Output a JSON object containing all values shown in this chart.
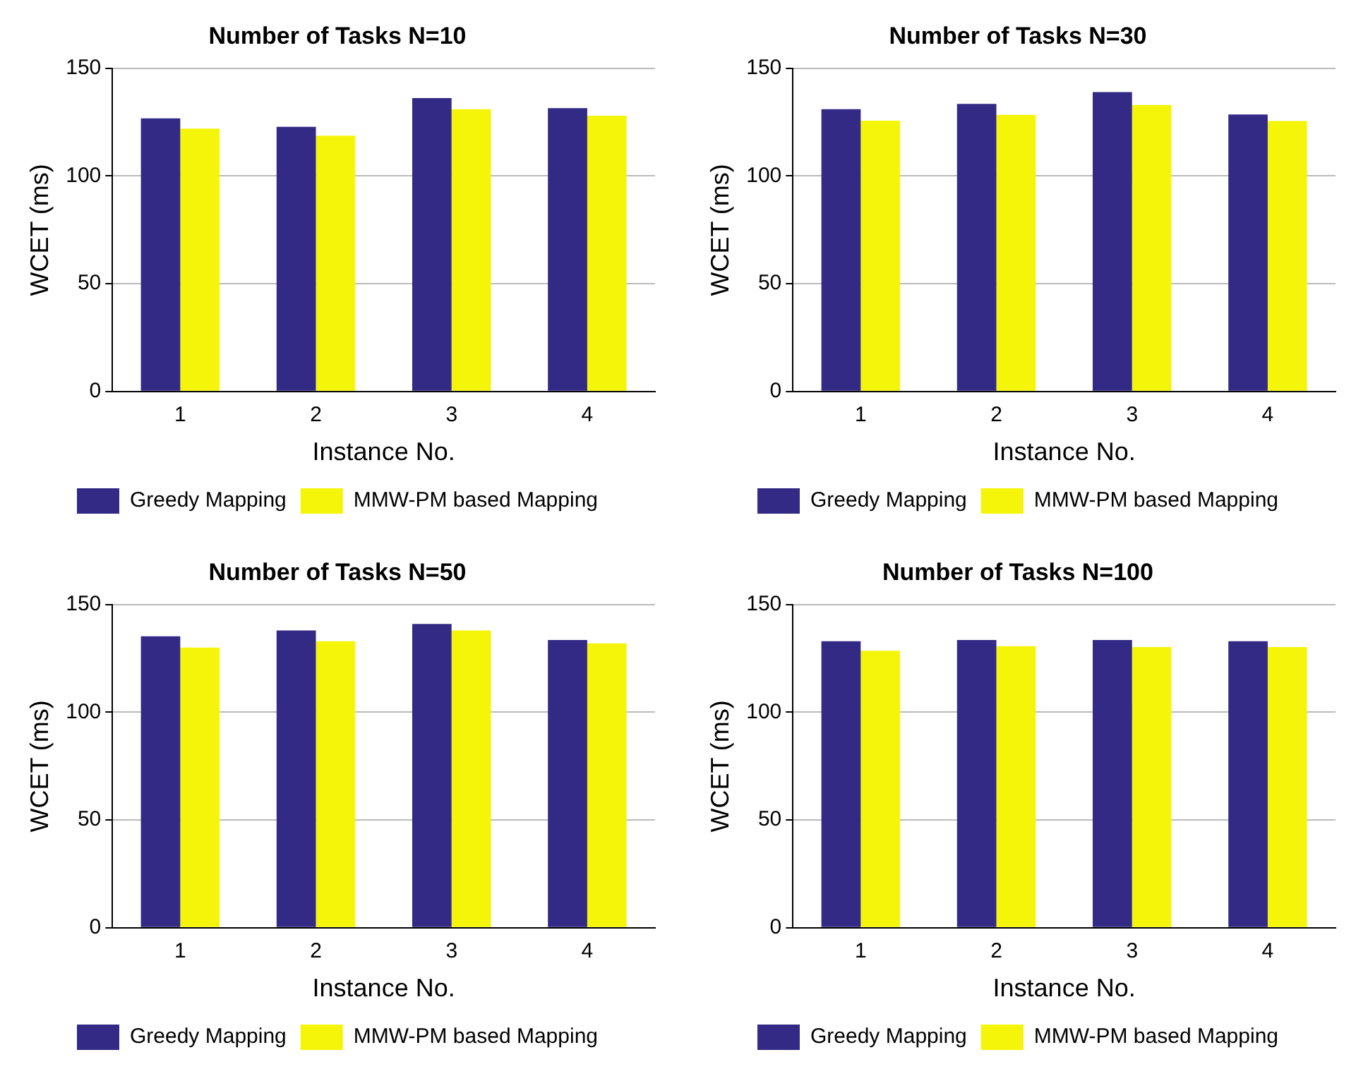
{
  "chart_data": [
    {
      "type": "bar",
      "title": "Number of Tasks N=10",
      "xlabel": "Instance No.",
      "ylabel": "WCET (ms)",
      "categories": [
        "1",
        "2",
        "3",
        "4"
      ],
      "series": [
        {
          "name": "Greedy Mapping",
          "color": "#332a85",
          "values": [
            126.8,
            122.8,
            136.2,
            131.5
          ]
        },
        {
          "name": "MMW-PM based Mapping",
          "color": "#f5f50a",
          "values": [
            122,
            118.7,
            131,
            128
          ]
        }
      ],
      "ylim": [
        0,
        150
      ],
      "yticks": [
        0,
        50,
        100,
        150
      ],
      "grid": "y",
      "legend": "bottom"
    },
    {
      "type": "bar",
      "title": "Number of Tasks N=30",
      "xlabel": "Instance No.",
      "ylabel": "WCET (ms)",
      "categories": [
        "1",
        "2",
        "3",
        "4"
      ],
      "series": [
        {
          "name": "Greedy Mapping",
          "color": "#332a85",
          "values": [
            131,
            133.5,
            139,
            128.6
          ]
        },
        {
          "name": "MMW-PM based Mapping",
          "color": "#f5f50a",
          "values": [
            125.7,
            128.4,
            133,
            125.5
          ]
        }
      ],
      "ylim": [
        0,
        150
      ],
      "yticks": [
        0,
        50,
        100,
        150
      ],
      "grid": "y",
      "legend": "bottom"
    },
    {
      "type": "bar",
      "title": "Number of Tasks N=50",
      "xlabel": "Instance No.",
      "ylabel": "WCET (ms)",
      "categories": [
        "1",
        "2",
        "3",
        "4"
      ],
      "series": [
        {
          "name": "Greedy Mapping",
          "color": "#332a85",
          "values": [
            135.3,
            138,
            141,
            133.6
          ]
        },
        {
          "name": "MMW-PM based Mapping",
          "color": "#f5f50a",
          "values": [
            130,
            133,
            138,
            132
          ]
        }
      ],
      "ylim": [
        0,
        150
      ],
      "yticks": [
        0,
        50,
        100,
        150
      ],
      "grid": "y",
      "legend": "bottom"
    },
    {
      "type": "bar",
      "title": "Number of Tasks N=100",
      "xlabel": "Instance No.",
      "ylabel": "WCET (ms)",
      "categories": [
        "1",
        "2",
        "3",
        "4"
      ],
      "series": [
        {
          "name": "Greedy Mapping",
          "color": "#332a85",
          "values": [
            133,
            133.6,
            133.6,
            133
          ]
        },
        {
          "name": "MMW-PM based Mapping",
          "color": "#f5f50a",
          "values": [
            128.6,
            130.7,
            130.3,
            130.3
          ]
        }
      ],
      "ylim": [
        0,
        150
      ],
      "yticks": [
        0,
        50,
        100,
        150
      ],
      "grid": "y",
      "legend": "bottom"
    }
  ]
}
